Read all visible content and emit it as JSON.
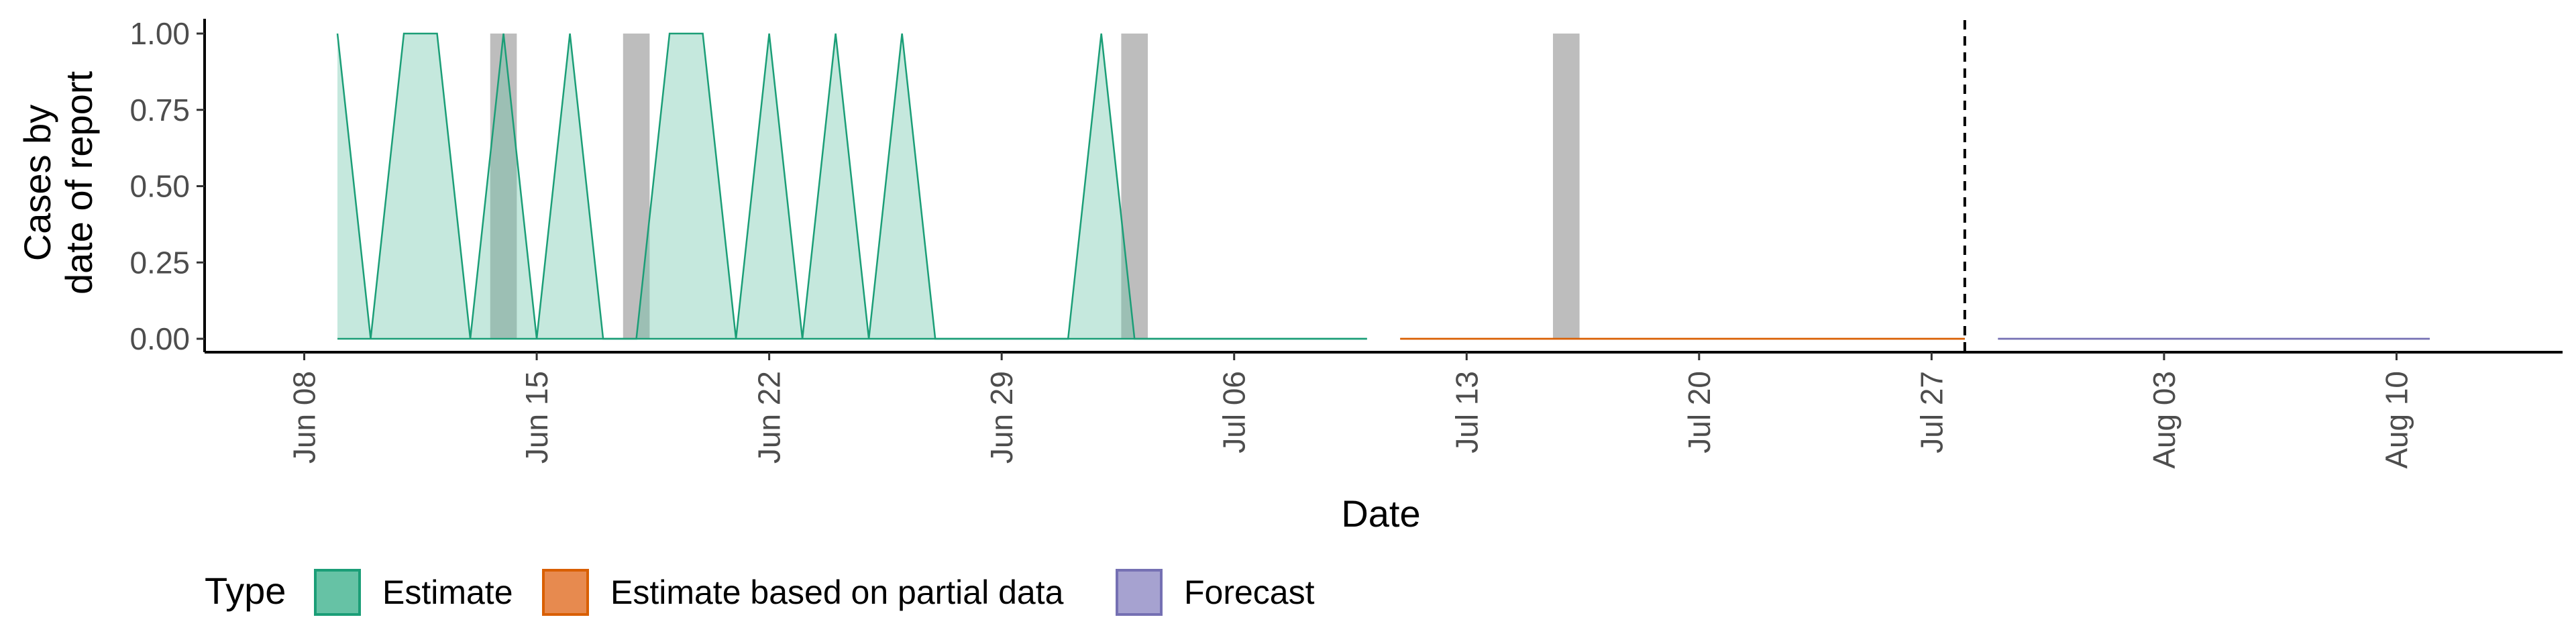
{
  "chart_data": {
    "type": "area",
    "xlabel": "Date",
    "ylabel_lines": [
      "Cases by",
      "date of report"
    ],
    "x_ticks": [
      "2020-06-08",
      "2020-06-15",
      "2020-06-22",
      "2020-06-29",
      "2020-07-06",
      "2020-07-13",
      "2020-07-20",
      "2020-07-27",
      "2020-08-03",
      "2020-08-10"
    ],
    "x_tick_labels": [
      "Jun 08",
      "Jun 15",
      "Jun 22",
      "Jun 29",
      "Jul 06",
      "Jul 13",
      "Jul 20",
      "Jul 27",
      "Aug 03",
      "Aug 10"
    ],
    "y_ticks": [
      0,
      0.25,
      0.5,
      0.75,
      1
    ],
    "y_tick_labels": [
      "0.00",
      "0.25",
      "0.50",
      "0.75",
      "1.00"
    ],
    "xlim": [
      "2020-06-05",
      "2020-08-15"
    ],
    "ylim": [
      0,
      1.05
    ],
    "legend_title": "Type",
    "legend_position": "bottom",
    "forecast_date": "2020-07-28",
    "observed_bars": [
      {
        "date": "2020-06-14",
        "value": 1
      },
      {
        "date": "2020-06-18",
        "value": 1
      },
      {
        "date": "2020-07-03",
        "value": 1
      },
      {
        "date": "2020-07-16",
        "value": 1
      }
    ],
    "observed_bar_color": "#bdbdbd",
    "series": [
      {
        "name": "Estimate",
        "line_color": "#1b9e77",
        "fill_color": "#66c2a5",
        "points": [
          [
            "2020-06-09",
            1
          ],
          [
            "2020-06-10",
            0
          ],
          [
            "2020-06-11",
            1
          ],
          [
            "2020-06-12",
            1
          ],
          [
            "2020-06-13",
            0
          ],
          [
            "2020-06-14",
            1
          ],
          [
            "2020-06-15",
            0
          ],
          [
            "2020-06-16",
            1
          ],
          [
            "2020-06-17",
            0
          ],
          [
            "2020-06-18",
            0
          ],
          [
            "2020-06-19",
            1
          ],
          [
            "2020-06-20",
            1
          ],
          [
            "2020-06-21",
            0
          ],
          [
            "2020-06-22",
            1
          ],
          [
            "2020-06-23",
            0
          ],
          [
            "2020-06-24",
            1
          ],
          [
            "2020-06-25",
            0
          ],
          [
            "2020-06-26",
            1
          ],
          [
            "2020-06-27",
            0
          ],
          [
            "2020-06-28",
            0
          ],
          [
            "2020-06-29",
            0
          ],
          [
            "2020-06-30",
            0
          ],
          [
            "2020-07-01",
            0
          ],
          [
            "2020-07-02",
            1
          ],
          [
            "2020-07-03",
            0
          ],
          [
            "2020-07-04",
            0
          ],
          [
            "2020-07-05",
            0
          ],
          [
            "2020-07-06",
            0
          ],
          [
            "2020-07-07",
            0
          ],
          [
            "2020-07-08",
            0
          ],
          [
            "2020-07-09",
            0
          ],
          [
            "2020-07-10",
            0
          ]
        ]
      },
      {
        "name": "Estimate based on partial data",
        "line_color": "#d95f02",
        "fill_color": "#e78a4f",
        "points": [
          [
            "2020-07-11",
            0
          ],
          [
            "2020-07-14",
            0
          ],
          [
            "2020-07-17",
            0
          ],
          [
            "2020-07-20",
            0
          ],
          [
            "2020-07-23",
            0
          ],
          [
            "2020-07-26",
            0
          ],
          [
            "2020-07-28",
            0
          ]
        ]
      },
      {
        "name": "Forecast",
        "line_color": "#7570b3",
        "fill_color": "#a6a2d0",
        "points": [
          [
            "2020-07-29",
            0
          ],
          [
            "2020-08-01",
            0
          ],
          [
            "2020-08-04",
            0
          ],
          [
            "2020-08-07",
            0
          ],
          [
            "2020-08-10",
            0
          ],
          [
            "2020-08-11",
            0
          ]
        ]
      }
    ]
  }
}
